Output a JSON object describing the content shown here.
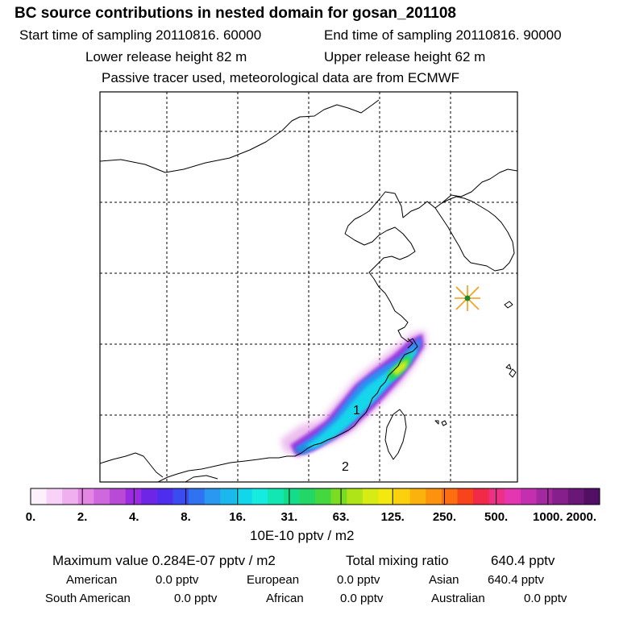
{
  "header": {
    "title": "BC  source contributions in nested domain for gosan_201108",
    "start_label": "Start time of sampling 20110816. 60000",
    "end_label": "End time of sampling 20110816. 90000",
    "lower_label": "Lower release height   82 m",
    "upper_label": "Upper release height   62 m",
    "tracer_line": "Passive tracer used, meteorological data are from ECMWF"
  },
  "colors": {
    "legend": [
      "#fdf0fd",
      "#f8d2f8",
      "#f0b0f0",
      "#e486e4",
      "#cf68de",
      "#b84ad6",
      "#9b2be0",
      "#6f25e6",
      "#4f2dee",
      "#3a4cf0",
      "#2f73f2",
      "#2a98f0",
      "#1ab8ec",
      "#12d6ea",
      "#15ecdf",
      "#12e6b3",
      "#14dd8a",
      "#22d764",
      "#45d83e",
      "#7bdc24",
      "#aee418",
      "#d6ec14",
      "#f4e80e",
      "#fcd00c",
      "#fcb20c",
      "#fc920e",
      "#fc6e10",
      "#f8441a",
      "#f22a4a",
      "#ee2f88",
      "#e336b0",
      "#c42fb0",
      "#a4289f",
      "#861f8c",
      "#6a1878",
      "#520f63"
    ],
    "station_marker": "#f59c1a",
    "station_center": "#1a8a2a"
  },
  "chart_data": {
    "type": "heatmap",
    "title": "BC  source contributions in nested domain for gosan_201108",
    "colorbar": {
      "tick_labels": [
        "0.",
        "2.",
        "4.",
        "8.",
        "16.",
        "31.",
        "63.",
        "125.",
        "250.",
        "500.",
        "1000.",
        "2000."
      ],
      "unit_label": "10E-10 pptv / m2"
    },
    "plume_values": {
      "max": 2.84e-08,
      "units": "pptv / m2"
    },
    "map_labels": [
      "1",
      "2"
    ],
    "summary": {
      "maximum_value_label": "Maximum value  0.284E-07 pptv / m2",
      "total_label": "Total mixing ratio",
      "total_value": "640.4 pptv",
      "regions": [
        {
          "name": "American",
          "value": "0.0 pptv"
        },
        {
          "name": "European",
          "value": "0.0 pptv"
        },
        {
          "name": "Asian",
          "value": "640.4 pptv"
        },
        {
          "name": "South American",
          "value": "0.0 pptv"
        },
        {
          "name": "African",
          "value": "0.0 pptv"
        },
        {
          "name": "Australian",
          "value": "0.0 pptv"
        }
      ]
    }
  }
}
